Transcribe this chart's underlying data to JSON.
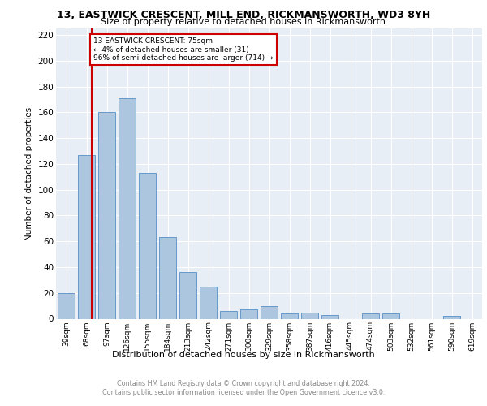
{
  "title": "13, EASTWICK CRESCENT, MILL END, RICKMANSWORTH, WD3 8YH",
  "subtitle": "Size of property relative to detached houses in Rickmansworth",
  "xlabel": "Distribution of detached houses by size in Rickmansworth",
  "ylabel": "Number of detached properties",
  "categories": [
    "39sqm",
    "68sqm",
    "97sqm",
    "126sqm",
    "155sqm",
    "184sqm",
    "213sqm",
    "242sqm",
    "271sqm",
    "300sqm",
    "329sqm",
    "358sqm",
    "387sqm",
    "416sqm",
    "445sqm",
    "474sqm",
    "503sqm",
    "532sqm",
    "561sqm",
    "590sqm",
    "619sqm"
  ],
  "values": [
    20,
    127,
    160,
    171,
    113,
    63,
    36,
    25,
    6,
    7,
    10,
    4,
    5,
    3,
    0,
    4,
    4,
    0,
    0,
    2,
    0
  ],
  "bar_color": "#adc6e0",
  "bar_edge_color": "#6699cc",
  "property_line_color": "#cc0000",
  "annotation_text": "13 EASTWICK CRESCENT: 75sqm\n← 4% of detached houses are smaller (31)\n96% of semi-detached houses are larger (714) →",
  "annotation_box_color": "#ffffff",
  "annotation_box_edge_color": "#cc0000",
  "ylim": [
    0,
    225
  ],
  "yticks": [
    0,
    20,
    40,
    60,
    80,
    100,
    120,
    140,
    160,
    180,
    200,
    220
  ],
  "background_color": "#e8eef5",
  "grid_color": "#ffffff",
  "footer_line1": "Contains HM Land Registry data © Crown copyright and database right 2024.",
  "footer_line2": "Contains public sector information licensed under the Open Government Licence v3.0."
}
